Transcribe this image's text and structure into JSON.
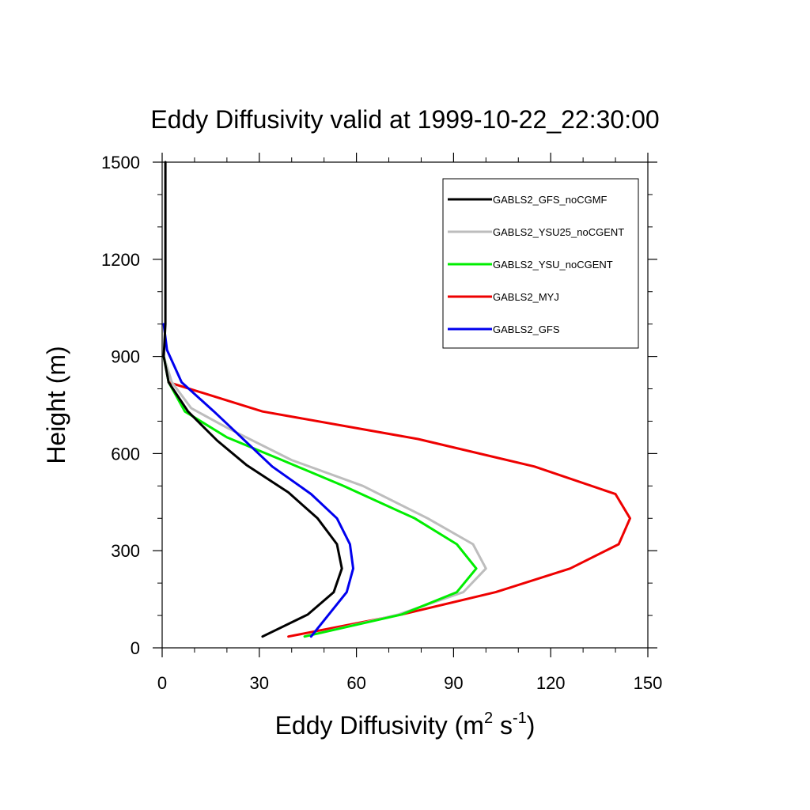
{
  "chart_data": {
    "type": "line",
    "title": "Eddy Diffusivity valid at 1999-10-22_22:30:00",
    "xlabel": "Eddy Diffusivity (m",
    "xlabel_sup1": "2",
    "xlabel_mid": " s",
    "xlabel_sup2": "-1",
    "xlabel_end": ")",
    "ylabel": "Height (m)",
    "xlim": [
      0,
      150
    ],
    "ylim": [
      0,
      1500
    ],
    "x_ticks": [
      0,
      30,
      60,
      90,
      120,
      150
    ],
    "y_ticks": [
      0,
      300,
      600,
      900,
      1200,
      1500
    ],
    "x_tick_labels": [
      "0",
      "30",
      "60",
      "90",
      "120",
      "150"
    ],
    "y_tick_labels": [
      "0",
      "300",
      "600",
      "900",
      "1200",
      "1500"
    ],
    "legend_position": "top-right",
    "series": [
      {
        "name": "GABLS2_GFS_noCGMF",
        "color": "#000000",
        "points": [
          [
            31,
            35
          ],
          [
            45,
            103
          ],
          [
            53,
            172
          ],
          [
            55.5,
            245
          ],
          [
            54,
            320
          ],
          [
            48,
            400
          ],
          [
            39,
            480
          ],
          [
            26,
            565
          ],
          [
            17,
            640
          ],
          [
            8,
            730
          ],
          [
            2,
            820
          ],
          [
            0.5,
            900
          ],
          [
            1,
            1000
          ],
          [
            1,
            1100
          ],
          [
            1,
            1200
          ],
          [
            1,
            1300
          ],
          [
            1,
            1400
          ],
          [
            1,
            1500
          ]
        ]
      },
      {
        "name": "GABLS2_YSU25_noCGENT",
        "color": "#bdbdbd",
        "points": [
          [
            44,
            35
          ],
          [
            73,
            103
          ],
          [
            93,
            172
          ],
          [
            100,
            245
          ],
          [
            96,
            320
          ],
          [
            82,
            400
          ],
          [
            62,
            500
          ],
          [
            40,
            580
          ],
          [
            20,
            680
          ],
          [
            9,
            740
          ],
          [
            3,
            820
          ],
          [
            0.5,
            900
          ]
        ]
      },
      {
        "name": "GABLS2_YSU_noCGENT",
        "color": "#00ee00",
        "points": [
          [
            44,
            35
          ],
          [
            74,
            103
          ],
          [
            91,
            172
          ],
          [
            97,
            245
          ],
          [
            91,
            320
          ],
          [
            78,
            400
          ],
          [
            56,
            500
          ],
          [
            37,
            580
          ],
          [
            20,
            650
          ],
          [
            7,
            730
          ],
          [
            2,
            820
          ],
          [
            0.5,
            900
          ]
        ]
      },
      {
        "name": "GABLS2_MYJ",
        "color": "#ee0000",
        "points": [
          [
            39,
            35
          ],
          [
            74,
            103
          ],
          [
            103,
            172
          ],
          [
            126,
            245
          ],
          [
            141,
            320
          ],
          [
            144.5,
            400
          ],
          [
            140,
            475
          ],
          [
            115,
            560
          ],
          [
            79,
            645
          ],
          [
            31,
            730
          ],
          [
            2,
            820
          ]
        ]
      },
      {
        "name": "GABLS2_GFS",
        "color": "#0000ee",
        "points": [
          [
            46,
            35
          ],
          [
            57,
            172
          ],
          [
            59,
            245
          ],
          [
            58,
            320
          ],
          [
            54,
            400
          ],
          [
            46,
            475
          ],
          [
            34,
            560
          ],
          [
            16,
            730
          ],
          [
            6,
            820
          ],
          [
            1.5,
            920
          ],
          [
            0.5,
            1000
          ]
        ]
      }
    ]
  }
}
